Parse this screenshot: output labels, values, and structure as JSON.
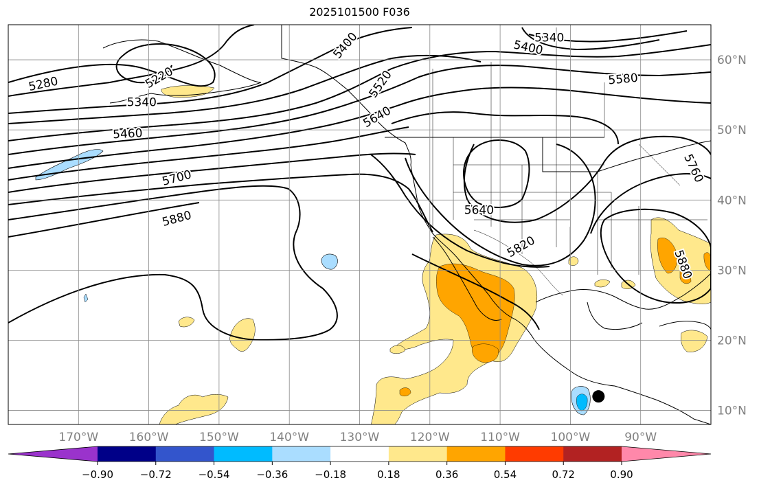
{
  "title": "2025101500 F036",
  "map": {
    "projection": "equirectangular",
    "lon_range": [
      -180,
      -80
    ],
    "lat_range": [
      8,
      65
    ],
    "lon_ticks": [
      {
        "value": -170,
        "label": "170°W"
      },
      {
        "value": -160,
        "label": "160°W"
      },
      {
        "value": -150,
        "label": "150°W"
      },
      {
        "value": -140,
        "label": "140°W"
      },
      {
        "value": -130,
        "label": "130°W"
      },
      {
        "value": -120,
        "label": "120°W"
      },
      {
        "value": -110,
        "label": "110°W"
      },
      {
        "value": -100,
        "label": "100°W"
      },
      {
        "value": -90,
        "label": "90°W"
      }
    ],
    "lat_ticks": [
      {
        "value": 10,
        "label": "10°N"
      },
      {
        "value": 20,
        "label": "20°N"
      },
      {
        "value": 30,
        "label": "30°N"
      },
      {
        "value": 40,
        "label": "40°N"
      },
      {
        "value": 50,
        "label": "50°N"
      },
      {
        "value": 60,
        "label": "60°N"
      }
    ],
    "gridlines": true,
    "contour_labels": [
      {
        "text": "5280",
        "lon": -175,
        "lat": 56.5,
        "rot": -12
      },
      {
        "text": "5340",
        "lon": -161,
        "lat": 53.9,
        "rot": 0
      },
      {
        "text": "5460",
        "lon": -163,
        "lat": 49.4,
        "rot": -3
      },
      {
        "text": "5700",
        "lon": -156,
        "lat": 43.1,
        "rot": -15
      },
      {
        "text": "5880",
        "lon": -156,
        "lat": 37.3,
        "rot": -15
      },
      {
        "text": "5400",
        "lon": -132,
        "lat": 62,
        "rot": -50
      },
      {
        "text": "5520",
        "lon": -127,
        "lat": 56.5,
        "rot": -55
      },
      {
        "text": "5640",
        "lon": -127.5,
        "lat": 51.8,
        "rot": -30
      },
      {
        "text": "5640",
        "lon": -113,
        "lat": 38.5,
        "rot": 0
      },
      {
        "text": "5820",
        "lon": -107,
        "lat": 33.3,
        "rot": -30
      },
      {
        "text": "5340",
        "lon": -103,
        "lat": 63.1,
        "rot": 0
      },
      {
        "text": "5400",
        "lon": -106,
        "lat": 61.7,
        "rot": 12
      },
      {
        "text": "5580",
        "lon": -92.5,
        "lat": 57.2,
        "rot": -5
      },
      {
        "text": "5760",
        "lon": -82.5,
        "lat": 44.5,
        "rot": 65
      },
      {
        "text": "5880",
        "lon": -84,
        "lat": 30.8,
        "rot": 70
      },
      {
        "text": "5220",
        "lon": -158.5,
        "lat": 57.4,
        "rot": -30
      }
    ],
    "marker": {
      "lon": -96,
      "lat": 12
    }
  },
  "colorbar": {
    "colors": [
      "#9a33cc",
      "#000088",
      "#3355cc",
      "#00bbff",
      "#aaddff",
      "#ffffff",
      "#ffe88c",
      "#ffa500",
      "#ff3b00",
      "#b22222",
      "#ff88aa"
    ],
    "tick_labels": [
      "−0.90",
      "−0.72",
      "−0.54",
      "−0.36",
      "−0.18",
      "0.18",
      "0.36",
      "0.54",
      "0.72",
      "0.90"
    ]
  }
}
